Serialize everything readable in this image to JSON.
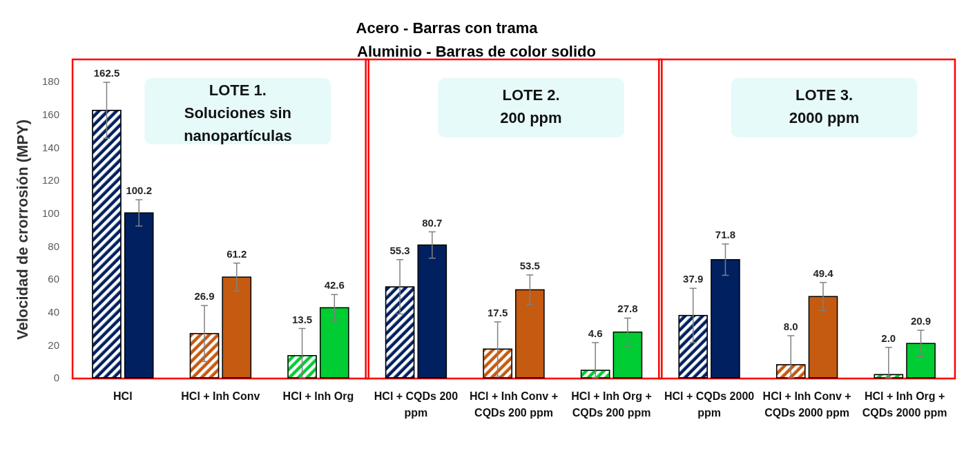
{
  "chart_data": {
    "type": "bar",
    "title": "Acero - Barras con trama",
    "subtitle": "Aluminio - Barras de color solido",
    "ylabel": "Velocidad de crorrosión (MPY)",
    "categories": [
      "HCl",
      "HCl + Inh Conv",
      "HCl + Inh Org",
      "HCl + CQDs 200 ppm",
      "HCl + Inh Conv + CQDs 200 ppm",
      "HCl + Inh Org + CQDs 200 ppm",
      "HCl + CQDs 2000 ppm",
      "HCl + Inh Conv + CQDs 2000 ppm",
      "HCl + Inh Org + CQDs 2000 ppm"
    ],
    "series": [
      {
        "colors": [
          "#002060",
          "#c55a11",
          "#00cc33",
          "#002060",
          "#c55a11",
          "#00cc33",
          "#002060",
          "#c55a11",
          "#00cc33"
        ],
        "values": [
          162.5,
          26.9,
          13.5,
          55.3,
          17.5,
          4.6,
          37.9,
          8,
          2
        ],
        "value_labels": [
          "162.5",
          "26.9",
          "13.5",
          "55.3",
          "17.5",
          "4.6",
          "37.9",
          "8.0",
          "2.0"
        ],
        "errors": [
          17,
          17,
          [
            0,
            30
          ],
          16.5,
          16.5,
          [
            0,
            21.4
          ],
          16.5,
          [
            0,
            25.6
          ],
          [
            0,
            18.5
          ]
        ]
      },
      {
        "colors": [
          "#002060",
          "#c55a11",
          "#00cc33",
          "#002060",
          "#c55a11",
          "#00cc33",
          "#002060",
          "#c55a11",
          "#00cc33"
        ],
        "values": [
          100.2,
          61.2,
          42.6,
          80.7,
          53.5,
          27.8,
          71.8,
          49.4,
          20.9
        ],
        "value_labels": [
          "100.2",
          "61.2",
          "42.6",
          "80.7",
          "53.5",
          "27.8",
          "71.8",
          "49.4",
          "20.9"
        ],
        "errors": [
          8,
          8.5,
          8,
          8,
          9,
          8.5,
          9.5,
          8.5,
          8
        ]
      }
    ],
    "ylim": [
      0,
      180
    ],
    "yticks": [
      0,
      20,
      40,
      60,
      80,
      100,
      120,
      140,
      160,
      180
    ],
    "grid": false,
    "annotations": [
      "LOTE 1.\nSoluciones sin\nnanopartículas",
      "LOTE 2.\n200 ppm",
      "LOTE 3.\n2000 ppm"
    ]
  }
}
